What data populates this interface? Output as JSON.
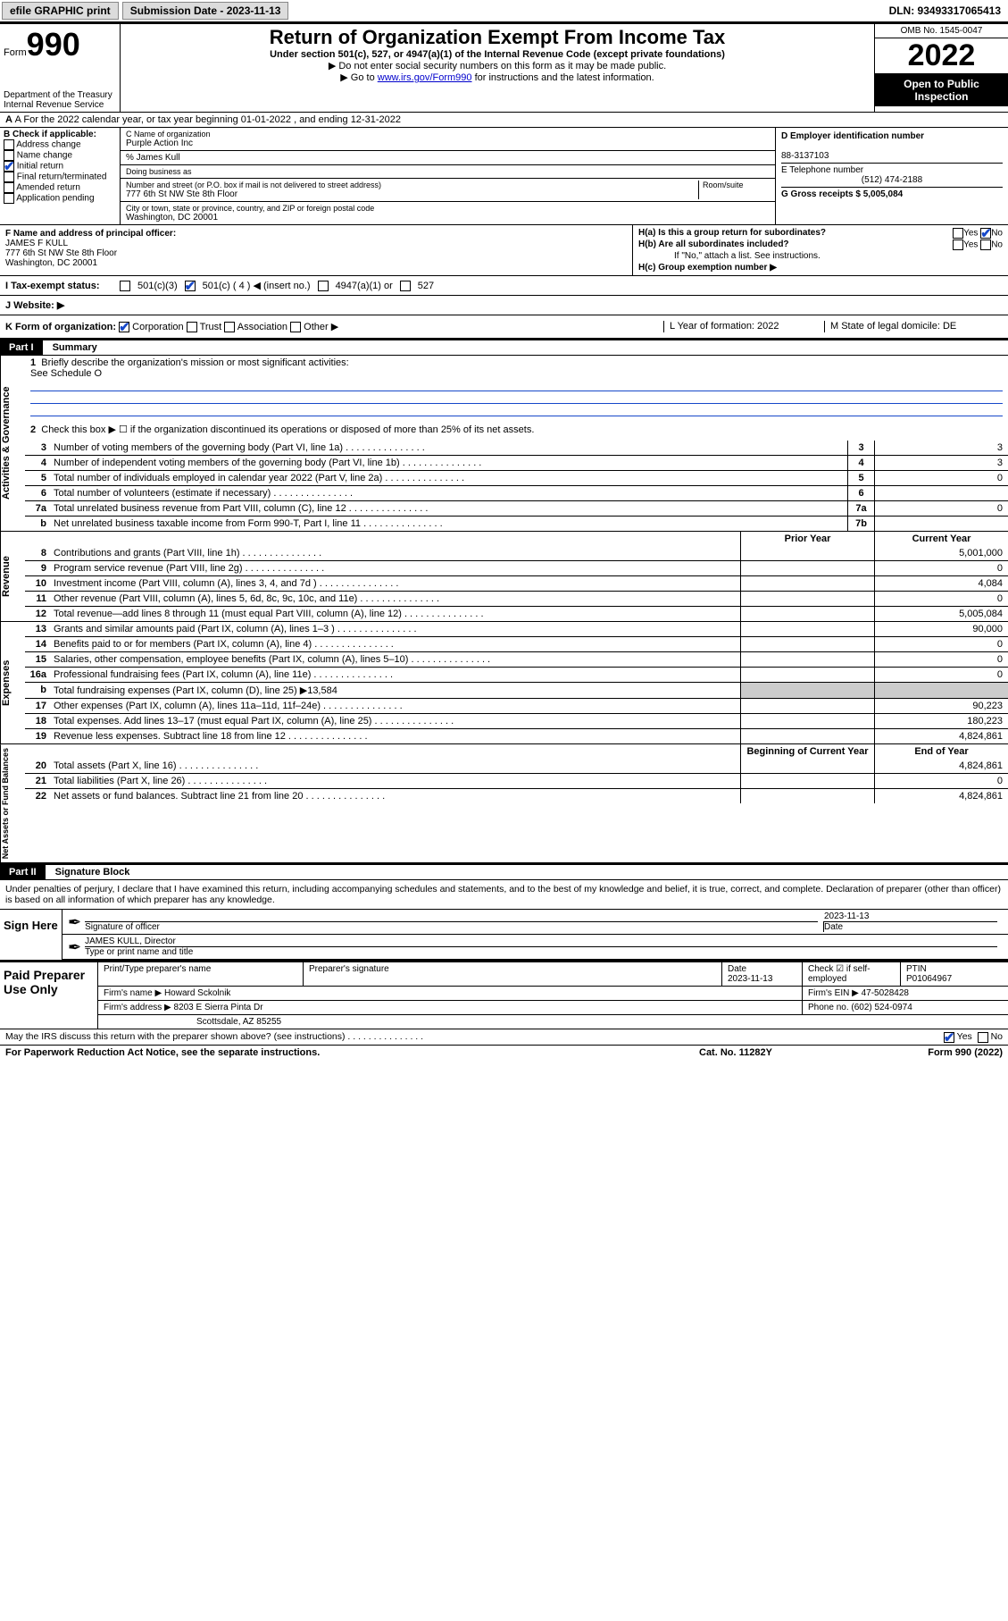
{
  "topbar": {
    "efile_label": "efile GRAPHIC print",
    "submission_label": "Submission Date - 2023-11-13",
    "dln_label": "DLN: 93493317065413"
  },
  "header": {
    "form_word": "Form",
    "form_num": "990",
    "dept": "Department of the Treasury",
    "irs": "Internal Revenue Service",
    "title": "Return of Organization Exempt From Income Tax",
    "subtitle": "Under section 501(c), 527, or 4947(a)(1) of the Internal Revenue Code (except private foundations)",
    "note1": "▶ Do not enter social security numbers on this form as it may be made public.",
    "note2_pre": "▶ Go to ",
    "note2_link": "www.irs.gov/Form990",
    "note2_post": " for instructions and the latest information.",
    "omb": "OMB No. 1545-0047",
    "year": "2022",
    "open": "Open to Public Inspection"
  },
  "rowA": "A For the 2022 calendar year, or tax year beginning 01-01-2022   , and ending 12-31-2022",
  "colB": {
    "hdr": "B Check if applicable:",
    "items": [
      "Address change",
      "Name change",
      "Initial return",
      "Final return/terminated",
      "Amended return",
      "Application pending"
    ],
    "checked_idx": 2
  },
  "colC": {
    "name_lbl": "C Name of organization",
    "name": "Purple Action Inc",
    "care_lbl": "% James Kull",
    "dba_lbl": "Doing business as",
    "street_lbl": "Number and street (or P.O. box if mail is not delivered to street address)",
    "room_lbl": "Room/suite",
    "street": "777 6th St NW Ste 8th Floor",
    "city_lbl": "City or town, state or province, country, and ZIP or foreign postal code",
    "city": "Washington, DC  20001"
  },
  "colD": {
    "ein_lbl": "D Employer identification number",
    "ein": "88-3137103",
    "tel_lbl": "E Telephone number",
    "tel": "(512) 474-2188",
    "gross_lbl": "G Gross receipts $ 5,005,084"
  },
  "rowF": {
    "lbl": "F  Name and address of principal officer:",
    "name": "JAMES F KULL",
    "addr1": "777 6th St NW Ste 8th Floor",
    "addr2": "Washington, DC  20001"
  },
  "rowH": {
    "a": "H(a)  Is this a group return for subordinates?",
    "a_ans": "No",
    "b": "H(b)  Are all subordinates included?",
    "b_note": "If \"No,\" attach a list. See instructions.",
    "c": "H(c)  Group exemption number ▶"
  },
  "rowI": {
    "lbl": "I   Tax-exempt status:",
    "opts": [
      "501(c)(3)",
      "501(c) ( 4 ) ◀ (insert no.)",
      "4947(a)(1) or",
      "527"
    ]
  },
  "rowJ": {
    "lbl": "J   Website: ▶"
  },
  "rowK": {
    "lbl": "K Form of organization:",
    "opts": [
      "Corporation",
      "Trust",
      "Association",
      "Other ▶"
    ]
  },
  "rowL": "L Year of formation: 2022",
  "rowM": "M State of legal domicile: DE",
  "part1": {
    "hdr": "Part I",
    "title": "Summary",
    "q1": "Briefly describe the organization's mission or most significant activities:",
    "q1a": "See Schedule O",
    "q2": "Check this box ▶ ☐  if the organization discontinued its operations or disposed of more than 25% of its net assets.",
    "lines_gov": [
      {
        "n": "3",
        "t": "Number of voting members of the governing body (Part VI, line 1a)",
        "box": "3",
        "v": "3"
      },
      {
        "n": "4",
        "t": "Number of independent voting members of the governing body (Part VI, line 1b)",
        "box": "4",
        "v": "3"
      },
      {
        "n": "5",
        "t": "Total number of individuals employed in calendar year 2022 (Part V, line 2a)",
        "box": "5",
        "v": "0"
      },
      {
        "n": "6",
        "t": "Total number of volunteers (estimate if necessary)",
        "box": "6",
        "v": ""
      },
      {
        "n": "7a",
        "t": "Total unrelated business revenue from Part VIII, column (C), line 12",
        "box": "7a",
        "v": "0"
      },
      {
        "n": "b",
        "t": "Net unrelated business taxable income from Form 990-T, Part I, line 11",
        "box": "7b",
        "v": ""
      }
    ],
    "col_prior": "Prior Year",
    "col_curr": "Current Year",
    "lines_rev": [
      {
        "n": "8",
        "t": "Contributions and grants (Part VIII, line 1h)",
        "p": "",
        "c": "5,001,000"
      },
      {
        "n": "9",
        "t": "Program service revenue (Part VIII, line 2g)",
        "p": "",
        "c": "0"
      },
      {
        "n": "10",
        "t": "Investment income (Part VIII, column (A), lines 3, 4, and 7d )",
        "p": "",
        "c": "4,084"
      },
      {
        "n": "11",
        "t": "Other revenue (Part VIII, column (A), lines 5, 6d, 8c, 9c, 10c, and 11e)",
        "p": "",
        "c": "0"
      },
      {
        "n": "12",
        "t": "Total revenue—add lines 8 through 11 (must equal Part VIII, column (A), line 12)",
        "p": "",
        "c": "5,005,084"
      }
    ],
    "lines_exp": [
      {
        "n": "13",
        "t": "Grants and similar amounts paid (Part IX, column (A), lines 1–3 )",
        "p": "",
        "c": "90,000"
      },
      {
        "n": "14",
        "t": "Benefits paid to or for members (Part IX, column (A), line 4)",
        "p": "",
        "c": "0"
      },
      {
        "n": "15",
        "t": "Salaries, other compensation, employee benefits (Part IX, column (A), lines 5–10)",
        "p": "",
        "c": "0"
      },
      {
        "n": "16a",
        "t": "Professional fundraising fees (Part IX, column (A), line 11e)",
        "p": "",
        "c": "0"
      },
      {
        "n": "b",
        "t": "Total fundraising expenses (Part IX, column (D), line 25) ▶13,584",
        "noval": true
      },
      {
        "n": "17",
        "t": "Other expenses (Part IX, column (A), lines 11a–11d, 11f–24e)",
        "p": "",
        "c": "90,223"
      },
      {
        "n": "18",
        "t": "Total expenses. Add lines 13–17 (must equal Part IX, column (A), line 25)",
        "p": "",
        "c": "180,223"
      },
      {
        "n": "19",
        "t": "Revenue less expenses. Subtract line 18 from line 12",
        "p": "",
        "c": "4,824,861"
      }
    ],
    "col_begin": "Beginning of Current Year",
    "col_end": "End of Year",
    "lines_net": [
      {
        "n": "20",
        "t": "Total assets (Part X, line 16)",
        "p": "",
        "c": "4,824,861"
      },
      {
        "n": "21",
        "t": "Total liabilities (Part X, line 26)",
        "p": "",
        "c": "0"
      },
      {
        "n": "22",
        "t": "Net assets or fund balances. Subtract line 21 from line 20",
        "p": "",
        "c": "4,824,861"
      }
    ],
    "side_gov": "Activities & Governance",
    "side_rev": "Revenue",
    "side_exp": "Expenses",
    "side_net": "Net Assets or Fund Balances"
  },
  "part2": {
    "hdr": "Part II",
    "title": "Signature Block",
    "decl": "Under penalties of perjury, I declare that I have examined this return, including accompanying schedules and statements, and to the best of my knowledge and belief, it is true, correct, and complete. Declaration of preparer (other than officer) is based on all information of which preparer has any knowledge."
  },
  "sign": {
    "here": "Sign Here",
    "sig_lbl": "Signature of officer",
    "date_lbl": "Date",
    "date": "2023-11-13",
    "name": "JAMES KULL,  Director",
    "name_lbl": "Type or print name and title"
  },
  "paid": {
    "hdr": "Paid Preparer Use Only",
    "r1": {
      "c1": "Print/Type preparer's name",
      "c2": "Preparer's signature",
      "c3": "Date",
      "c3v": "2023-11-13",
      "c4": "Check ☑ if self-employed",
      "c5": "PTIN",
      "c5v": "P01064967"
    },
    "r2": {
      "c1": "Firm's name    ▶ Howard Sckolnik",
      "c2": "Firm's EIN ▶ 47-5028428"
    },
    "r3": {
      "c1": "Firm's address ▶ 8203 E Sierra Pinta Dr",
      "c2": "Phone no. (602) 524-0974"
    },
    "r4": {
      "c1": "Scottsdale, AZ  85255"
    }
  },
  "footer": {
    "discuss": "May the IRS discuss this return with the preparer shown above? (see instructions)",
    "yes": "Yes",
    "no": "No",
    "pra": "For Paperwork Reduction Act Notice, see the separate instructions.",
    "cat": "Cat. No. 11282Y",
    "form": "Form 990 (2022)"
  }
}
